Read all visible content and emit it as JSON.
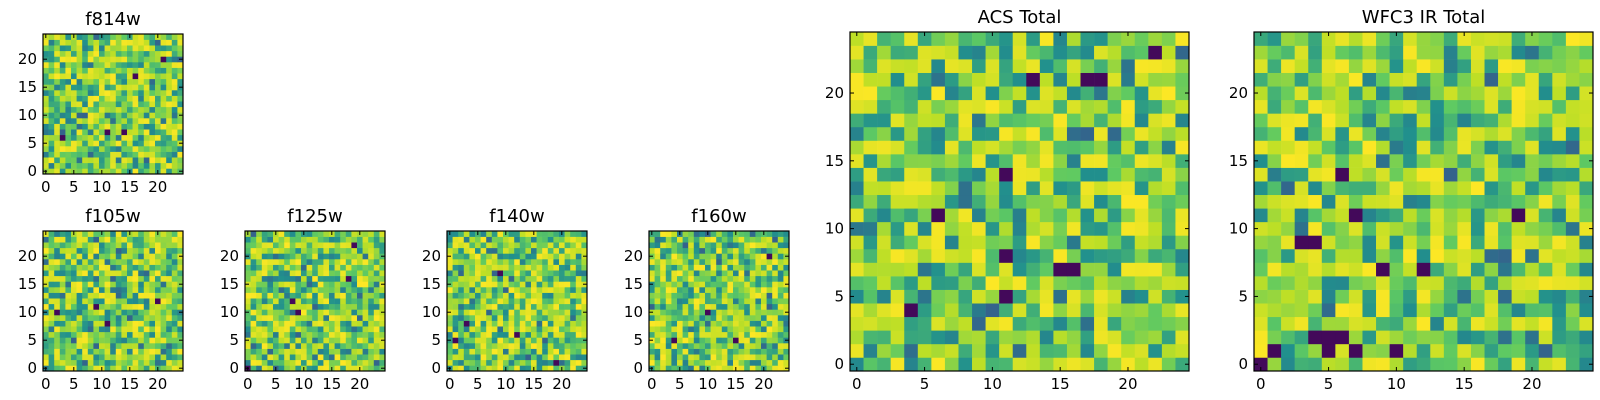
{
  "figure": {
    "colormap": [
      "#440154",
      "#3b528b",
      "#21908d",
      "#5dc963",
      "#bddf26",
      "#fde725"
    ]
  },
  "chart_data": [
    {
      "type": "heatmap",
      "title": "f814w",
      "grid": false,
      "shape": [
        25,
        25
      ],
      "xlim": [
        -0.5,
        24.5
      ],
      "ylim": [
        -0.5,
        24.5
      ],
      "x_ticks": [
        0,
        5,
        10,
        15,
        20
      ],
      "y_ticks": [
        0,
        5,
        10,
        15,
        20
      ],
      "values_note": "25x25 noise-like pixel values, mostly mid-to-high (green/yellow) with a few dark pixels near (11,7), (14,7), (21,20)",
      "seed": 11,
      "dark_pixels": [
        [
          11,
          7
        ],
        [
          14,
          7
        ],
        [
          21,
          20
        ],
        [
          3,
          6
        ],
        [
          16,
          17
        ]
      ]
    },
    {
      "type": "heatmap",
      "title": "ACS Total",
      "grid": false,
      "shape": [
        25,
        25
      ],
      "xlim": [
        -0.5,
        24.5
      ],
      "ylim": [
        -0.5,
        24.5
      ],
      "x_ticks": [
        0,
        5,
        10,
        15,
        20
      ],
      "y_ticks": [
        0,
        5,
        10,
        15,
        20
      ],
      "seed": 23,
      "dark_pixels": [
        [
          22,
          23
        ],
        [
          13,
          21
        ],
        [
          17,
          21
        ],
        [
          18,
          21
        ],
        [
          11,
          14
        ],
        [
          11,
          8
        ],
        [
          15,
          7
        ],
        [
          16,
          7
        ],
        [
          11,
          5
        ],
        [
          4,
          4
        ],
        [
          6,
          11
        ]
      ]
    },
    {
      "type": "heatmap",
      "title": "WFC3 IR Total",
      "grid": false,
      "shape": [
        25,
        25
      ],
      "xlim": [
        -0.5,
        24.5
      ],
      "ylim": [
        -0.5,
        24.5
      ],
      "x_ticks": [
        0,
        5,
        10,
        15,
        20
      ],
      "y_ticks": [
        0,
        5,
        10,
        15,
        20
      ],
      "seed": 37,
      "dark_pixels": [
        [
          0,
          0
        ],
        [
          1,
          1
        ],
        [
          5,
          1
        ],
        [
          4,
          2
        ],
        [
          5,
          2
        ],
        [
          6,
          2
        ],
        [
          7,
          1
        ],
        [
          10,
          1
        ],
        [
          7,
          11
        ],
        [
          19,
          11
        ],
        [
          9,
          7
        ],
        [
          12,
          7
        ],
        [
          3,
          9
        ],
        [
          4,
          9
        ],
        [
          6,
          14
        ]
      ]
    },
    {
      "type": "heatmap",
      "title": "f105w",
      "grid": false,
      "shape": [
        25,
        25
      ],
      "xlim": [
        -0.5,
        24.5
      ],
      "ylim": [
        -0.5,
        24.5
      ],
      "x_ticks": [
        0,
        5,
        10,
        15,
        20
      ],
      "y_ticks": [
        0,
        5,
        10,
        15,
        20
      ],
      "seed": 51,
      "dark_pixels": [
        [
          2,
          10
        ],
        [
          11,
          8
        ],
        [
          20,
          12
        ],
        [
          9,
          11
        ]
      ]
    },
    {
      "type": "heatmap",
      "title": "f125w",
      "grid": false,
      "shape": [
        25,
        25
      ],
      "xlim": [
        -0.5,
        24.5
      ],
      "ylim": [
        -0.5,
        24.5
      ],
      "x_ticks": [
        0,
        5,
        10,
        15,
        20
      ],
      "y_ticks": [
        0,
        5,
        10,
        15,
        20
      ],
      "seed": 63,
      "dark_pixels": [
        [
          19,
          22
        ],
        [
          18,
          16
        ],
        [
          8,
          12
        ],
        [
          0,
          0
        ],
        [
          9,
          10
        ]
      ]
    },
    {
      "type": "heatmap",
      "title": "f140w",
      "grid": false,
      "shape": [
        25,
        25
      ],
      "xlim": [
        -0.5,
        24.5
      ],
      "ylim": [
        -0.5,
        24.5
      ],
      "x_ticks": [
        0,
        5,
        10,
        15,
        20
      ],
      "y_ticks": [
        0,
        5,
        10,
        15,
        20
      ],
      "seed": 79,
      "dark_pixels": [
        [
          3,
          8
        ],
        [
          9,
          17
        ],
        [
          19,
          1
        ],
        [
          1,
          5
        ],
        [
          12,
          6
        ]
      ]
    },
    {
      "type": "heatmap",
      "title": "f160w",
      "grid": false,
      "shape": [
        25,
        25
      ],
      "xlim": [
        -0.5,
        24.5
      ],
      "ylim": [
        -0.5,
        24.5
      ],
      "x_ticks": [
        0,
        5,
        10,
        15,
        20
      ],
      "y_ticks": [
        0,
        5,
        10,
        15,
        20
      ],
      "seed": 91,
      "dark_pixels": [
        [
          15,
          5
        ],
        [
          4,
          5
        ],
        [
          10,
          10
        ],
        [
          21,
          20
        ]
      ]
    }
  ]
}
